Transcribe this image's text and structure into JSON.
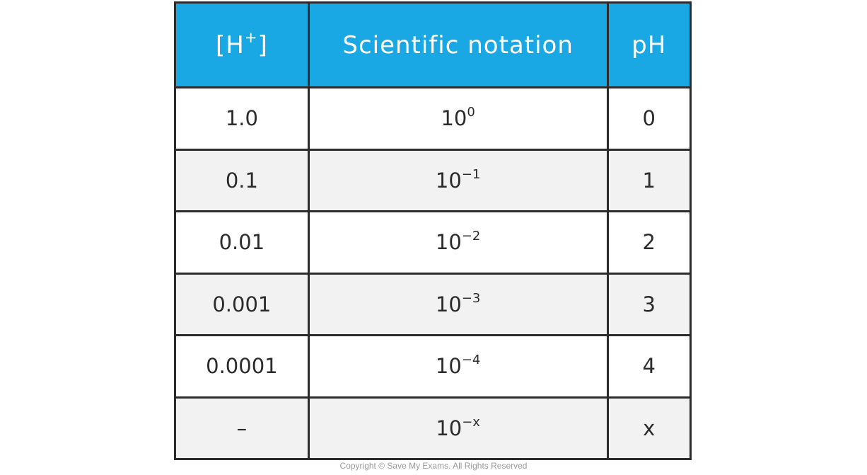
{
  "table": {
    "headers": {
      "h_base": "[H",
      "h_sup": "+",
      "h_close": "]",
      "sci": "Scientific notation",
      "ph": "pH"
    },
    "rows": [
      {
        "h": "1.0",
        "base": "10",
        "exp": "0",
        "ph": "0"
      },
      {
        "h": "0.1",
        "base": "10",
        "exp": "−1",
        "ph": "1"
      },
      {
        "h": "0.01",
        "base": "10",
        "exp": "−2",
        "ph": "2"
      },
      {
        "h": "0.001",
        "base": "10",
        "exp": "−3",
        "ph": "3"
      },
      {
        "h": "0.0001",
        "base": "10",
        "exp": "−4",
        "ph": "4"
      },
      {
        "h": "–",
        "base": "10",
        "exp": "−x",
        "ph": "x"
      }
    ]
  },
  "footer": {
    "copyright": "Copyright © Save My Exams. All Rights Reserved"
  },
  "colors": {
    "header_bg": "#1aa8e4",
    "border": "#2b2b2b",
    "alt_row": "#f2f2f2"
  }
}
